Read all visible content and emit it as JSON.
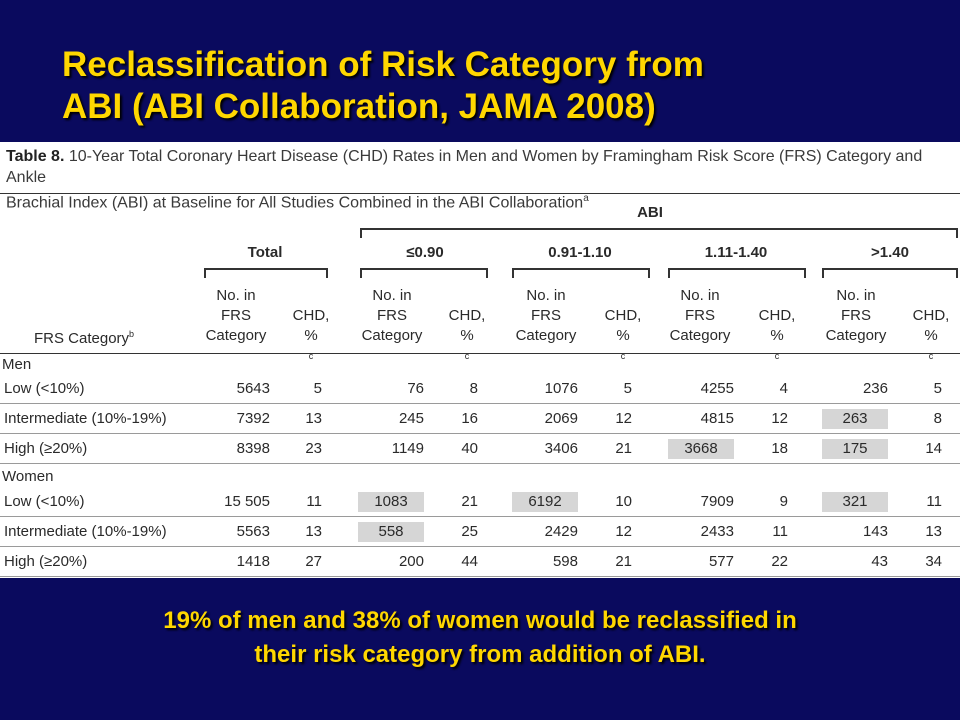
{
  "slide": {
    "title_line1": "Reclassification of Risk Category from",
    "title_line2": "ABI (ABI Collaboration, JAMA 2008)",
    "footer_line1": "19% of men and 38% of women would be reclassified in",
    "footer_line2": "their risk category from addition of ABI."
  },
  "table": {
    "number": "Table 8.",
    "caption_line1": "10-Year Total Coronary Heart Disease (CHD) Rates in Men and Women by Framingham Risk Score (FRS) Category and Ankle",
    "caption_line2": "Brachial Index (ABI) at Baseline for All Studies Combined in the ABI Collaboration",
    "caption_sup": "a",
    "abi_header": "ABI",
    "total_header": "Total",
    "abi_groups": [
      "≤0.90",
      "0.91-1.10",
      "1.11-1.40",
      ">1.40"
    ],
    "col_no_line1": "No. in",
    "col_no_line2": "FRS",
    "col_no_line3": "Category",
    "col_chd_line1": "CHD,",
    "col_chd_line2": "%",
    "col_chd_sup": "c",
    "frs_category_label": "FRS Category",
    "frs_category_sup": "b",
    "groups": [
      {
        "name": "Men",
        "rows": [
          {
            "label": "Low (<10%)",
            "values": [
              "5643",
              "5",
              "76",
              "8",
              "1076",
              "5",
              "4255",
              "4",
              "236",
              "5"
            ],
            "highlight": []
          },
          {
            "label": "Intermediate (10%-19%)",
            "values": [
              "7392",
              "13",
              "245",
              "16",
              "2069",
              "12",
              "4815",
              "12",
              "263",
              "8"
            ],
            "highlight": [
              8
            ]
          },
          {
            "label": "High (≥20%)",
            "values": [
              "8398",
              "23",
              "1149",
              "40",
              "3406",
              "21",
              "3668",
              "18",
              "175",
              "14"
            ],
            "highlight": [
              6,
              8
            ]
          }
        ]
      },
      {
        "name": "Women",
        "rows": [
          {
            "label": "Low (<10%)",
            "values": [
              "15 505",
              "11",
              "1083",
              "21",
              "6192",
              "10",
              "7909",
              "9",
              "321",
              "11"
            ],
            "highlight": [
              2,
              4,
              8
            ]
          },
          {
            "label": "Intermediate (10%-19%)",
            "values": [
              "5563",
              "13",
              "558",
              "25",
              "2429",
              "12",
              "2433",
              "11",
              "143",
              "13"
            ],
            "highlight": [
              2
            ]
          },
          {
            "label": "High (≥20%)",
            "values": [
              "1418",
              "27",
              "200",
              "44",
              "598",
              "21",
              "577",
              "22",
              "43",
              "34"
            ],
            "highlight": []
          }
        ]
      }
    ]
  }
}
